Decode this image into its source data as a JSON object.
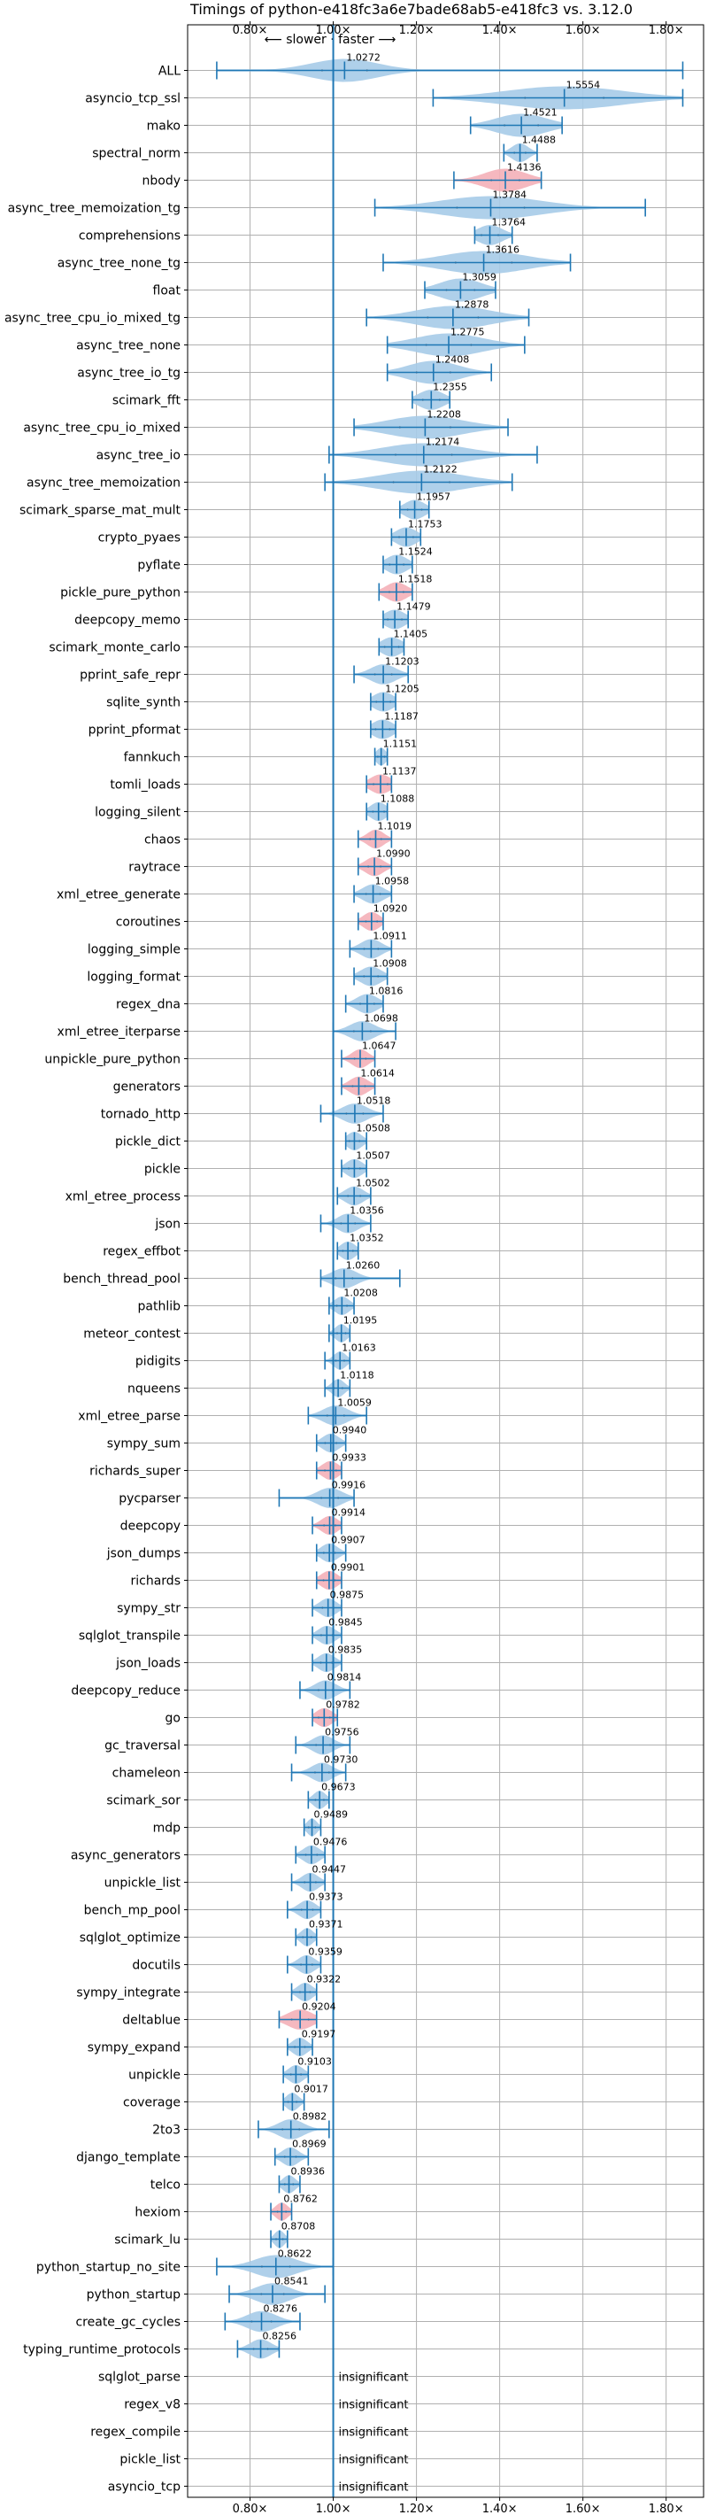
{
  "chart_data": {
    "type": "violin",
    "title": "Timings of python-e418fc3a6e7bade68ab5-e418fc3 vs. 3.12.0",
    "direction_note": "⟵ slower · faster ⟶",
    "x_ticks": [
      "0.80×",
      "1.00×",
      "1.20×",
      "1.40×",
      "1.60×",
      "1.80×"
    ],
    "x_tick_values": [
      0.8,
      1.0,
      1.2,
      1.4,
      1.6,
      1.8
    ],
    "xlim": [
      0.65,
      1.89
    ],
    "reference_line": 1.0,
    "grid": true,
    "insignificant_label": "insignificant",
    "colors": {
      "normal": "#a6cbe8",
      "regression": "#f4b0b8",
      "line": "#1f77b4"
    },
    "benchmarks": [
      {
        "name": "ALL",
        "value": 1.0272,
        "min": 0.72,
        "max": 1.84,
        "spread": 0.08,
        "highlight": false
      },
      {
        "name": "asyncio_tcp_ssl",
        "value": 1.5554,
        "min": 1.24,
        "max": 1.84,
        "spread": 0.14,
        "highlight": false
      },
      {
        "name": "mako",
        "value": 1.4521,
        "min": 1.33,
        "max": 1.55,
        "spread": 0.06,
        "highlight": false
      },
      {
        "name": "spectral_norm",
        "value": 1.4488,
        "min": 1.41,
        "max": 1.49,
        "spread": 0.02,
        "highlight": false
      },
      {
        "name": "nbody",
        "value": 1.4136,
        "min": 1.29,
        "max": 1.5,
        "spread": 0.05,
        "highlight": true
      },
      {
        "name": "async_tree_memoization_tg",
        "value": 1.3784,
        "min": 1.1,
        "max": 1.75,
        "spread": 0.12,
        "highlight": false
      },
      {
        "name": "comprehensions",
        "value": 1.3764,
        "min": 1.34,
        "max": 1.43,
        "spread": 0.03,
        "highlight": false
      },
      {
        "name": "async_tree_none_tg",
        "value": 1.3616,
        "min": 1.12,
        "max": 1.57,
        "spread": 0.1,
        "highlight": false
      },
      {
        "name": "float",
        "value": 1.3059,
        "min": 1.22,
        "max": 1.39,
        "spread": 0.05,
        "highlight": false
      },
      {
        "name": "async_tree_cpu_io_mixed_tg",
        "value": 1.2878,
        "min": 1.08,
        "max": 1.47,
        "spread": 0.09,
        "highlight": false
      },
      {
        "name": "async_tree_none",
        "value": 1.2775,
        "min": 1.13,
        "max": 1.46,
        "spread": 0.08,
        "highlight": false
      },
      {
        "name": "async_tree_io_tg",
        "value": 1.2408,
        "min": 1.13,
        "max": 1.38,
        "spread": 0.06,
        "highlight": false
      },
      {
        "name": "scimark_fft",
        "value": 1.2355,
        "min": 1.19,
        "max": 1.28,
        "spread": 0.03,
        "highlight": false
      },
      {
        "name": "async_tree_cpu_io_mixed",
        "value": 1.2208,
        "min": 1.05,
        "max": 1.42,
        "spread": 0.09,
        "highlight": false
      },
      {
        "name": "async_tree_io",
        "value": 1.2174,
        "min": 0.99,
        "max": 1.49,
        "spread": 0.1,
        "highlight": false
      },
      {
        "name": "async_tree_memoization",
        "value": 1.2122,
        "min": 0.98,
        "max": 1.43,
        "spread": 0.1,
        "highlight": false
      },
      {
        "name": "scimark_sparse_mat_mult",
        "value": 1.1957,
        "min": 1.16,
        "max": 1.23,
        "spread": 0.025,
        "highlight": false
      },
      {
        "name": "crypto_pyaes",
        "value": 1.1753,
        "min": 1.14,
        "max": 1.21,
        "spread": 0.025,
        "highlight": false
      },
      {
        "name": "pyflate",
        "value": 1.1524,
        "min": 1.12,
        "max": 1.19,
        "spread": 0.025,
        "highlight": false
      },
      {
        "name": "pickle_pure_python",
        "value": 1.1518,
        "min": 1.11,
        "max": 1.19,
        "spread": 0.025,
        "highlight": true
      },
      {
        "name": "deepcopy_memo",
        "value": 1.1479,
        "min": 1.12,
        "max": 1.18,
        "spread": 0.025,
        "highlight": false
      },
      {
        "name": "scimark_monte_carlo",
        "value": 1.1405,
        "min": 1.11,
        "max": 1.17,
        "spread": 0.025,
        "highlight": false
      },
      {
        "name": "pprint_safe_repr",
        "value": 1.1203,
        "min": 1.05,
        "max": 1.18,
        "spread": 0.03,
        "highlight": false
      },
      {
        "name": "sqlite_synth",
        "value": 1.1205,
        "min": 1.09,
        "max": 1.15,
        "spread": 0.025,
        "highlight": false
      },
      {
        "name": "pprint_pformat",
        "value": 1.1187,
        "min": 1.09,
        "max": 1.15,
        "spread": 0.025,
        "highlight": false
      },
      {
        "name": "fannkuch",
        "value": 1.1151,
        "min": 1.1,
        "max": 1.13,
        "spread": 0.012,
        "highlight": false
      },
      {
        "name": "tomli_loads",
        "value": 1.1137,
        "min": 1.08,
        "max": 1.14,
        "spread": 0.025,
        "highlight": true
      },
      {
        "name": "logging_silent",
        "value": 1.1088,
        "min": 1.08,
        "max": 1.13,
        "spread": 0.02,
        "highlight": false
      },
      {
        "name": "chaos",
        "value": 1.1019,
        "min": 1.06,
        "max": 1.14,
        "spread": 0.02,
        "highlight": true
      },
      {
        "name": "raytrace",
        "value": 1.099,
        "min": 1.06,
        "max": 1.14,
        "spread": 0.022,
        "highlight": true
      },
      {
        "name": "xml_etree_generate",
        "value": 1.0958,
        "min": 1.05,
        "max": 1.14,
        "spread": 0.025,
        "highlight": false
      },
      {
        "name": "coroutines",
        "value": 1.092,
        "min": 1.06,
        "max": 1.12,
        "spread": 0.02,
        "highlight": true
      },
      {
        "name": "logging_simple",
        "value": 1.0911,
        "min": 1.04,
        "max": 1.14,
        "spread": 0.025,
        "highlight": false
      },
      {
        "name": "logging_format",
        "value": 1.0908,
        "min": 1.05,
        "max": 1.13,
        "spread": 0.025,
        "highlight": false
      },
      {
        "name": "regex_dna",
        "value": 1.0816,
        "min": 1.03,
        "max": 1.12,
        "spread": 0.025,
        "highlight": false
      },
      {
        "name": "xml_etree_iterparse",
        "value": 1.0698,
        "min": 1.0,
        "max": 1.15,
        "spread": 0.03,
        "highlight": false
      },
      {
        "name": "unpickle_pure_python",
        "value": 1.0647,
        "min": 1.02,
        "max": 1.1,
        "spread": 0.02,
        "highlight": true
      },
      {
        "name": "generators",
        "value": 1.0614,
        "min": 1.02,
        "max": 1.1,
        "spread": 0.022,
        "highlight": true
      },
      {
        "name": "tornado_http",
        "value": 1.0518,
        "min": 0.97,
        "max": 1.12,
        "spread": 0.03,
        "highlight": false
      },
      {
        "name": "pickle_dict",
        "value": 1.0508,
        "min": 1.03,
        "max": 1.08,
        "spread": 0.018,
        "highlight": false
      },
      {
        "name": "pickle",
        "value": 1.0507,
        "min": 1.02,
        "max": 1.08,
        "spread": 0.02,
        "highlight": false
      },
      {
        "name": "xml_etree_process",
        "value": 1.0502,
        "min": 1.01,
        "max": 1.09,
        "spread": 0.022,
        "highlight": false
      },
      {
        "name": "json",
        "value": 1.0356,
        "min": 0.97,
        "max": 1.09,
        "spread": 0.025,
        "highlight": false
      },
      {
        "name": "regex_effbot",
        "value": 1.0352,
        "min": 1.01,
        "max": 1.06,
        "spread": 0.018,
        "highlight": false
      },
      {
        "name": "bench_thread_pool",
        "value": 1.026,
        "min": 0.97,
        "max": 1.16,
        "spread": 0.03,
        "highlight": false
      },
      {
        "name": "pathlib",
        "value": 1.0208,
        "min": 0.99,
        "max": 1.05,
        "spread": 0.018,
        "highlight": false
      },
      {
        "name": "meteor_contest",
        "value": 1.0195,
        "min": 0.99,
        "max": 1.04,
        "spread": 0.015,
        "highlight": false
      },
      {
        "name": "pidigits",
        "value": 1.0163,
        "min": 0.98,
        "max": 1.04,
        "spread": 0.015,
        "highlight": false
      },
      {
        "name": "nqueens",
        "value": 1.0118,
        "min": 0.98,
        "max": 1.04,
        "spread": 0.015,
        "highlight": false
      },
      {
        "name": "xml_etree_parse",
        "value": 1.0059,
        "min": 0.94,
        "max": 1.08,
        "spread": 0.03,
        "highlight": false
      },
      {
        "name": "sympy_sum",
        "value": 0.994,
        "min": 0.96,
        "max": 1.03,
        "spread": 0.02,
        "highlight": false
      },
      {
        "name": "richards_super",
        "value": 0.9933,
        "min": 0.96,
        "max": 1.02,
        "spread": 0.02,
        "highlight": true
      },
      {
        "name": "pycparser",
        "value": 0.9916,
        "min": 0.87,
        "max": 1.05,
        "spread": 0.03,
        "highlight": false
      },
      {
        "name": "deepcopy",
        "value": 0.9914,
        "min": 0.95,
        "max": 1.02,
        "spread": 0.02,
        "highlight": true
      },
      {
        "name": "json_dumps",
        "value": 0.9907,
        "min": 0.96,
        "max": 1.03,
        "spread": 0.02,
        "highlight": false
      },
      {
        "name": "richards",
        "value": 0.9901,
        "min": 0.96,
        "max": 1.02,
        "spread": 0.02,
        "highlight": true
      },
      {
        "name": "sympy_str",
        "value": 0.9875,
        "min": 0.95,
        "max": 1.02,
        "spread": 0.02,
        "highlight": false
      },
      {
        "name": "sqlglot_transpile",
        "value": 0.9845,
        "min": 0.95,
        "max": 1.02,
        "spread": 0.02,
        "highlight": false
      },
      {
        "name": "json_loads",
        "value": 0.9835,
        "min": 0.95,
        "max": 1.02,
        "spread": 0.02,
        "highlight": false
      },
      {
        "name": "deepcopy_reduce",
        "value": 0.9814,
        "min": 0.92,
        "max": 1.04,
        "spread": 0.025,
        "highlight": false
      },
      {
        "name": "go",
        "value": 0.9782,
        "min": 0.95,
        "max": 1.01,
        "spread": 0.02,
        "highlight": true
      },
      {
        "name": "gc_traversal",
        "value": 0.9756,
        "min": 0.91,
        "max": 1.04,
        "spread": 0.025,
        "highlight": false
      },
      {
        "name": "chameleon",
        "value": 0.973,
        "min": 0.9,
        "max": 1.03,
        "spread": 0.025,
        "highlight": false
      },
      {
        "name": "scimark_sor",
        "value": 0.9673,
        "min": 0.94,
        "max": 0.99,
        "spread": 0.015,
        "highlight": false
      },
      {
        "name": "mdp",
        "value": 0.9489,
        "min": 0.93,
        "max": 0.97,
        "spread": 0.012,
        "highlight": false
      },
      {
        "name": "async_generators",
        "value": 0.9476,
        "min": 0.91,
        "max": 0.98,
        "spread": 0.02,
        "highlight": false
      },
      {
        "name": "unpickle_list",
        "value": 0.9447,
        "min": 0.9,
        "max": 0.98,
        "spread": 0.02,
        "highlight": false
      },
      {
        "name": "bench_mp_pool",
        "value": 0.9373,
        "min": 0.89,
        "max": 0.97,
        "spread": 0.02,
        "highlight": false
      },
      {
        "name": "sqlglot_optimize",
        "value": 0.9371,
        "min": 0.91,
        "max": 0.96,
        "spread": 0.015,
        "highlight": false
      },
      {
        "name": "docutils",
        "value": 0.9359,
        "min": 0.89,
        "max": 0.97,
        "spread": 0.02,
        "highlight": false
      },
      {
        "name": "sympy_integrate",
        "value": 0.9322,
        "min": 0.9,
        "max": 0.96,
        "spread": 0.018,
        "highlight": false
      },
      {
        "name": "deltablue",
        "value": 0.9204,
        "min": 0.87,
        "max": 0.96,
        "spread": 0.03,
        "highlight": true
      },
      {
        "name": "sympy_expand",
        "value": 0.9197,
        "min": 0.89,
        "max": 0.95,
        "spread": 0.018,
        "highlight": false
      },
      {
        "name": "unpickle",
        "value": 0.9103,
        "min": 0.88,
        "max": 0.94,
        "spread": 0.018,
        "highlight": false
      },
      {
        "name": "coverage",
        "value": 0.9017,
        "min": 0.88,
        "max": 0.93,
        "spread": 0.015,
        "highlight": false
      },
      {
        "name": "2to3",
        "value": 0.8982,
        "min": 0.82,
        "max": 0.99,
        "spread": 0.03,
        "highlight": false
      },
      {
        "name": "django_template",
        "value": 0.8969,
        "min": 0.86,
        "max": 0.94,
        "spread": 0.02,
        "highlight": false
      },
      {
        "name": "telco",
        "value": 0.8936,
        "min": 0.87,
        "max": 0.92,
        "spread": 0.015,
        "highlight": false
      },
      {
        "name": "hexiom",
        "value": 0.8762,
        "min": 0.85,
        "max": 0.9,
        "spread": 0.015,
        "highlight": true
      },
      {
        "name": "scimark_lu",
        "value": 0.8708,
        "min": 0.85,
        "max": 0.89,
        "spread": 0.012,
        "highlight": false
      },
      {
        "name": "python_startup_no_site",
        "value": 0.8622,
        "min": 0.72,
        "max": 1.0,
        "spread": 0.05,
        "highlight": false
      },
      {
        "name": "python_startup",
        "value": 0.8541,
        "min": 0.75,
        "max": 0.98,
        "spread": 0.04,
        "highlight": false
      },
      {
        "name": "create_gc_cycles",
        "value": 0.8276,
        "min": 0.74,
        "max": 0.92,
        "spread": 0.035,
        "highlight": false
      },
      {
        "name": "typing_runtime_protocols",
        "value": 0.8256,
        "min": 0.77,
        "max": 0.87,
        "spread": 0.025,
        "highlight": false
      },
      {
        "name": "sqlglot_parse",
        "value": null
      },
      {
        "name": "regex_v8",
        "value": null
      },
      {
        "name": "regex_compile",
        "value": null
      },
      {
        "name": "pickle_list",
        "value": null
      },
      {
        "name": "asyncio_tcp",
        "value": null
      }
    ]
  }
}
